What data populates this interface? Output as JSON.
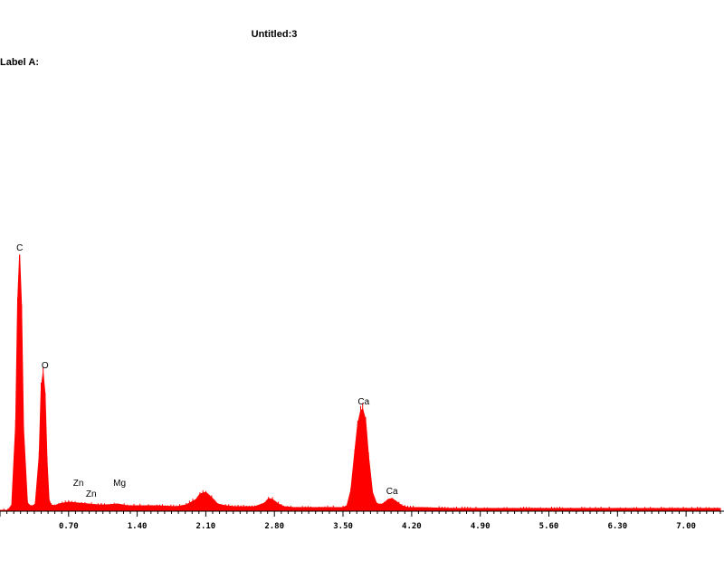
{
  "title": "Untitled:3",
  "label_a": "Label A:",
  "chart_data": {
    "type": "area",
    "title": "Untitled:3",
    "xlabel": "",
    "ylabel": "",
    "xlim": [
      0.0,
      7.35
    ],
    "x_ticks": [
      "0.70",
      "1.40",
      "2.10",
      "2.80",
      "3.50",
      "4.20",
      "4.90",
      "5.60",
      "6.30",
      "7.00"
    ],
    "color": "#ff0000",
    "series": [
      {
        "x": [
          0.0,
          0.08,
          0.12,
          0.16,
          0.18,
          0.2,
          0.22,
          0.24,
          0.28,
          0.32,
          0.36,
          0.4,
          0.42,
          0.44,
          0.46,
          0.48,
          0.5,
          0.52,
          0.56,
          0.6,
          0.7,
          0.8,
          0.9,
          1.0,
          1.1,
          1.2,
          1.3,
          1.4,
          1.6,
          1.8,
          1.9,
          2.0,
          2.04,
          2.1,
          2.16,
          2.22,
          2.3,
          2.4,
          2.6,
          2.7,
          2.74,
          2.78,
          2.84,
          2.9,
          3.0,
          3.2,
          3.4,
          3.5,
          3.54,
          3.58,
          3.62,
          3.65,
          3.68,
          3.7,
          3.73,
          3.76,
          3.8,
          3.84,
          3.88,
          3.92,
          3.96,
          4.0,
          4.04,
          4.1,
          4.16,
          4.3,
          4.6,
          5.0,
          5.6,
          6.3,
          7.0,
          7.35
        ],
        "y": [
          0,
          0,
          6,
          95,
          230,
          282,
          225,
          90,
          8,
          4,
          7,
          60,
          135,
          152,
          128,
          55,
          12,
          6,
          5,
          7,
          9,
          8,
          7,
          6,
          6,
          7,
          5,
          5,
          5,
          4,
          6,
          12,
          18,
          20,
          14,
          7,
          5,
          4,
          4,
          8,
          13,
          12,
          7,
          4,
          3,
          3,
          3,
          3,
          5,
          22,
          65,
          95,
          110,
          112,
          100,
          60,
          20,
          8,
          6,
          8,
          12,
          13,
          10,
          5,
          3,
          3,
          2,
          2,
          2,
          2,
          2,
          2
        ]
      }
    ],
    "peak_labels": [
      {
        "text": "C",
        "x": 0.2,
        "y": 282
      },
      {
        "text": "O",
        "x": 0.46,
        "y": 152
      },
      {
        "text": "Zn",
        "x": 0.8,
        "y": 22
      },
      {
        "text": "Zn",
        "x": 0.93,
        "y": 10
      },
      {
        "text": "Mg",
        "x": 1.22,
        "y": 22
      },
      {
        "text": "Ca",
        "x": 3.71,
        "y": 112
      },
      {
        "text": "Ca",
        "x": 4.0,
        "y": 13
      }
    ]
  }
}
